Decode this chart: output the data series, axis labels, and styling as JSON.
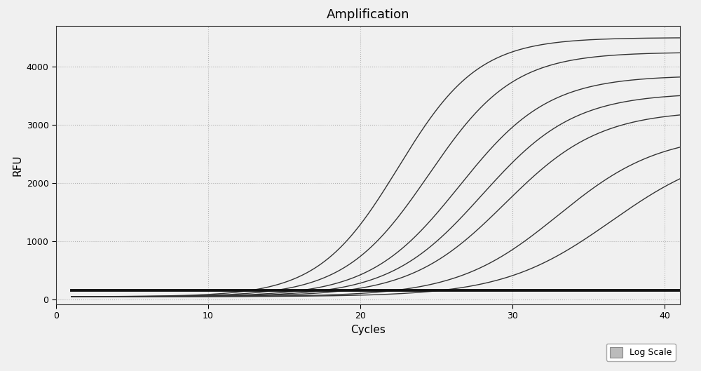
{
  "title": "Amplification",
  "xlabel": "Cycles",
  "ylabel": "RFU",
  "xlim": [
    1,
    41
  ],
  "ylim": [
    -80,
    4700
  ],
  "yticks": [
    0,
    1000,
    2000,
    3000,
    4000
  ],
  "xticks": [
    0,
    10,
    20,
    30,
    40
  ],
  "background_color": "#f0f0f0",
  "plot_bg_color": "#f0f0f0",
  "grid_color": "#999999",
  "line_color": "#333333",
  "flat_line_y": 155,
  "sigmoid_curves": [
    {
      "L": 4450,
      "k": 0.38,
      "x0": 22.5,
      "baseline": 50
    },
    {
      "L": 4200,
      "k": 0.36,
      "x0": 24.5,
      "baseline": 50
    },
    {
      "L": 3800,
      "k": 0.34,
      "x0": 26.5,
      "baseline": 50
    },
    {
      "L": 3500,
      "k": 0.33,
      "x0": 28.0,
      "baseline": 50
    },
    {
      "L": 3200,
      "k": 0.32,
      "x0": 29.5,
      "baseline": 50
    },
    {
      "L": 2800,
      "k": 0.3,
      "x0": 33.0,
      "baseline": 50
    },
    {
      "L": 2600,
      "k": 0.28,
      "x0": 36.5,
      "baseline": 50
    }
  ],
  "legend_label": "Log Scale",
  "legend_box_color": "#bbbbbb",
  "title_fontsize": 13,
  "axis_fontsize": 11,
  "figsize": [
    10.0,
    5.29
  ],
  "dpi": 100
}
